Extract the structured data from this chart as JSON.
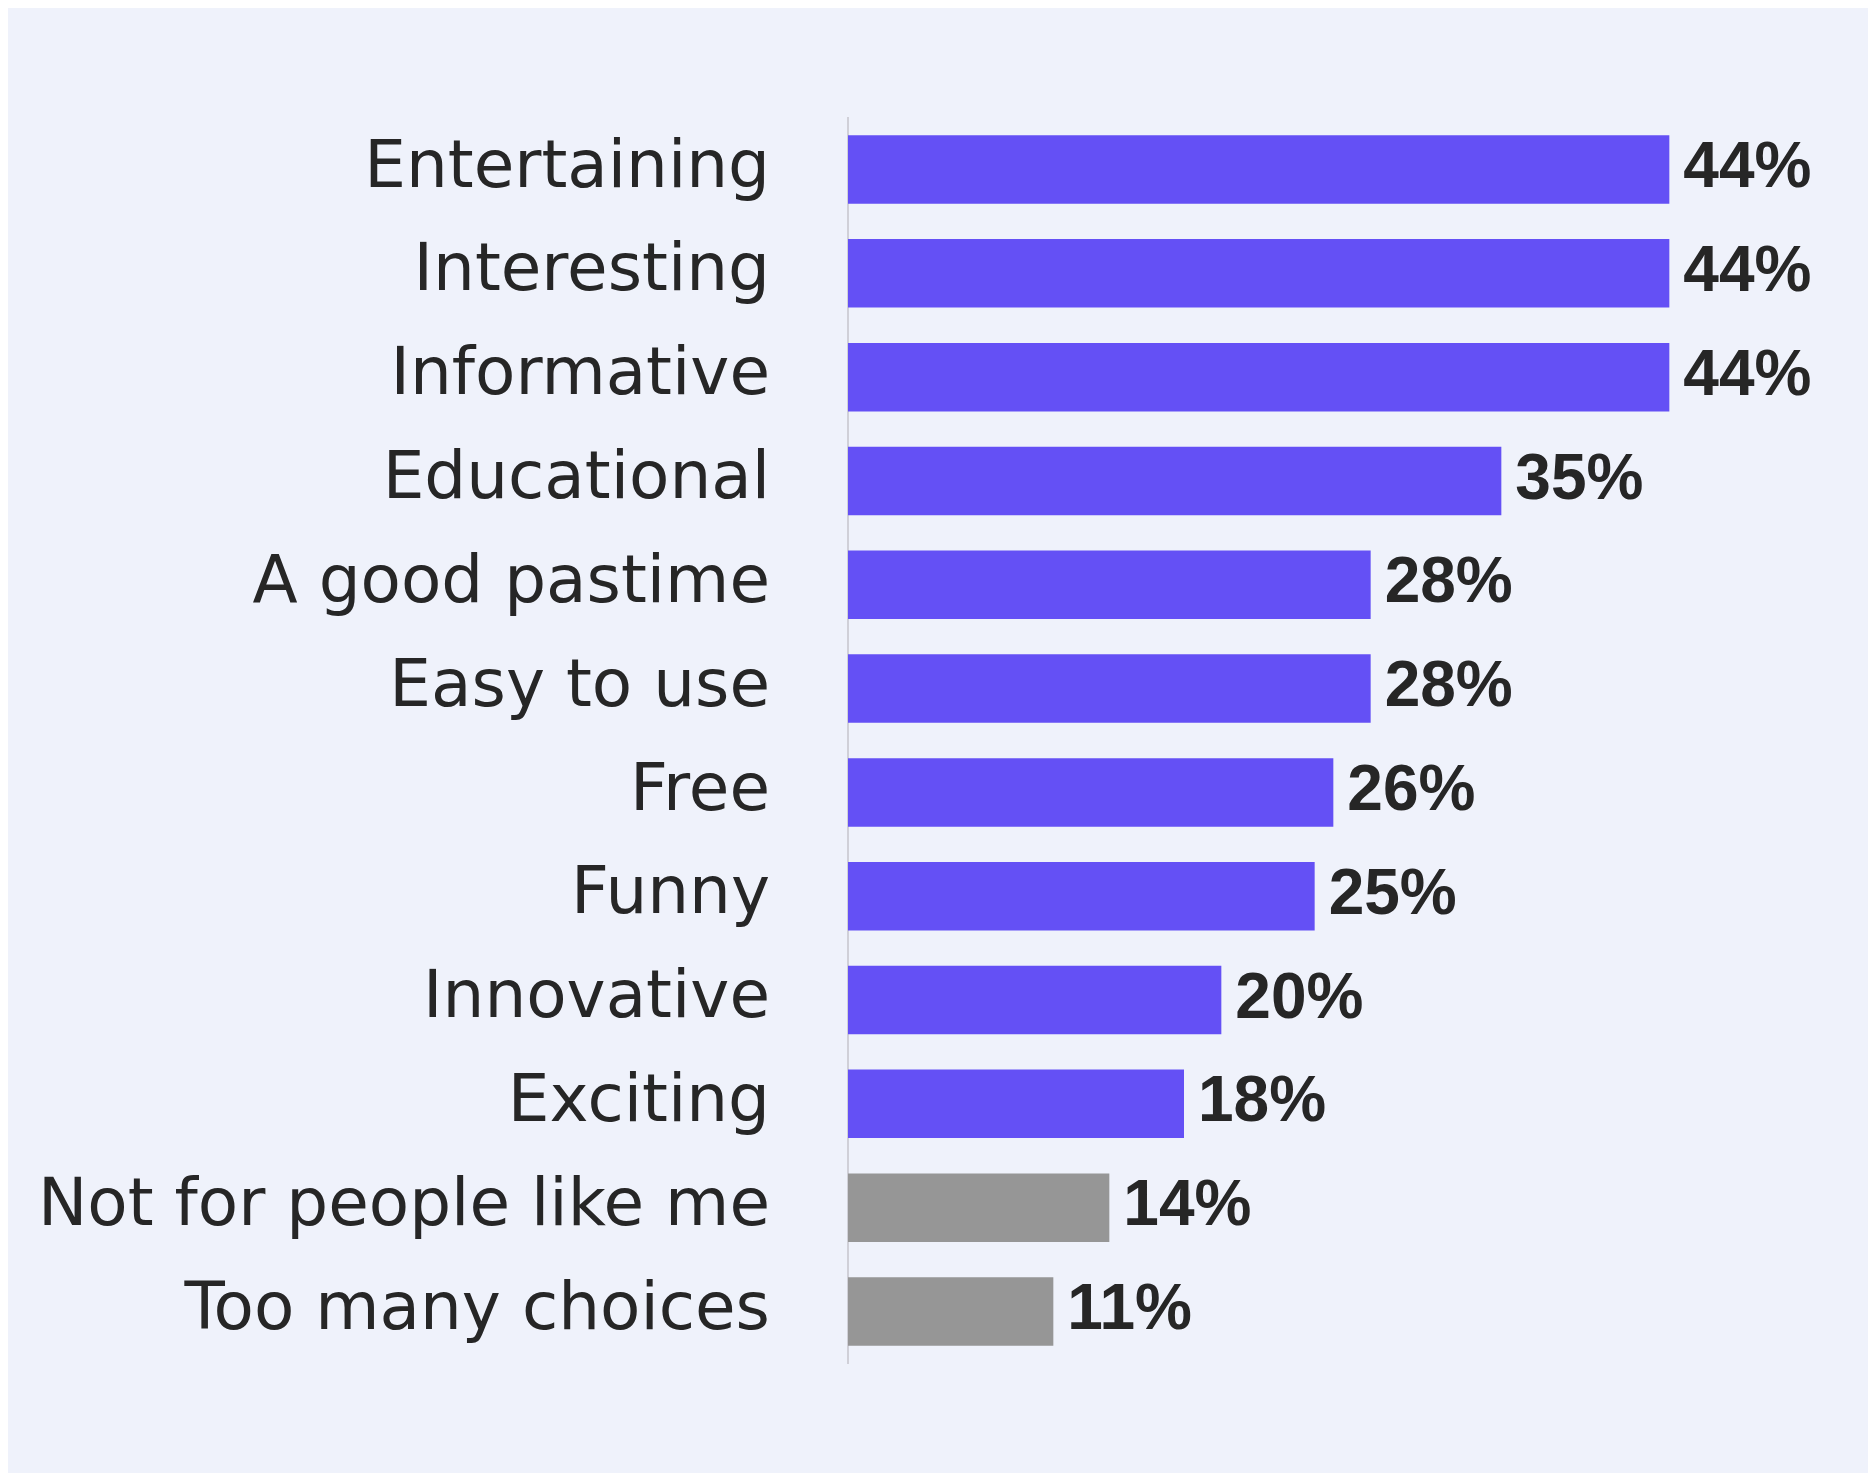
{
  "chart_data": {
    "type": "bar",
    "orientation": "horizontal",
    "categories": [
      "Entertaining",
      "Interesting",
      "Informative",
      "Educational",
      "A good pastime",
      "Easy to use",
      "Free",
      "Funny",
      "Innovative",
      "Exciting",
      "Not for people like me",
      "Too many choices"
    ],
    "values": [
      44,
      44,
      44,
      35,
      28,
      28,
      26,
      25,
      20,
      18,
      14,
      11
    ],
    "colors": [
      "#6450f5",
      "#6450f5",
      "#6450f5",
      "#6450f5",
      "#6450f5",
      "#6450f5",
      "#6450f5",
      "#6450f5",
      "#6450f5",
      "#6450f5",
      "#969696",
      "#969696"
    ],
    "value_labels": [
      "44%",
      "44%",
      "44%",
      "35%",
      "28%",
      "28%",
      "26%",
      "25%",
      "20%",
      "18%",
      "14%",
      "11%"
    ],
    "legend": false
  }
}
